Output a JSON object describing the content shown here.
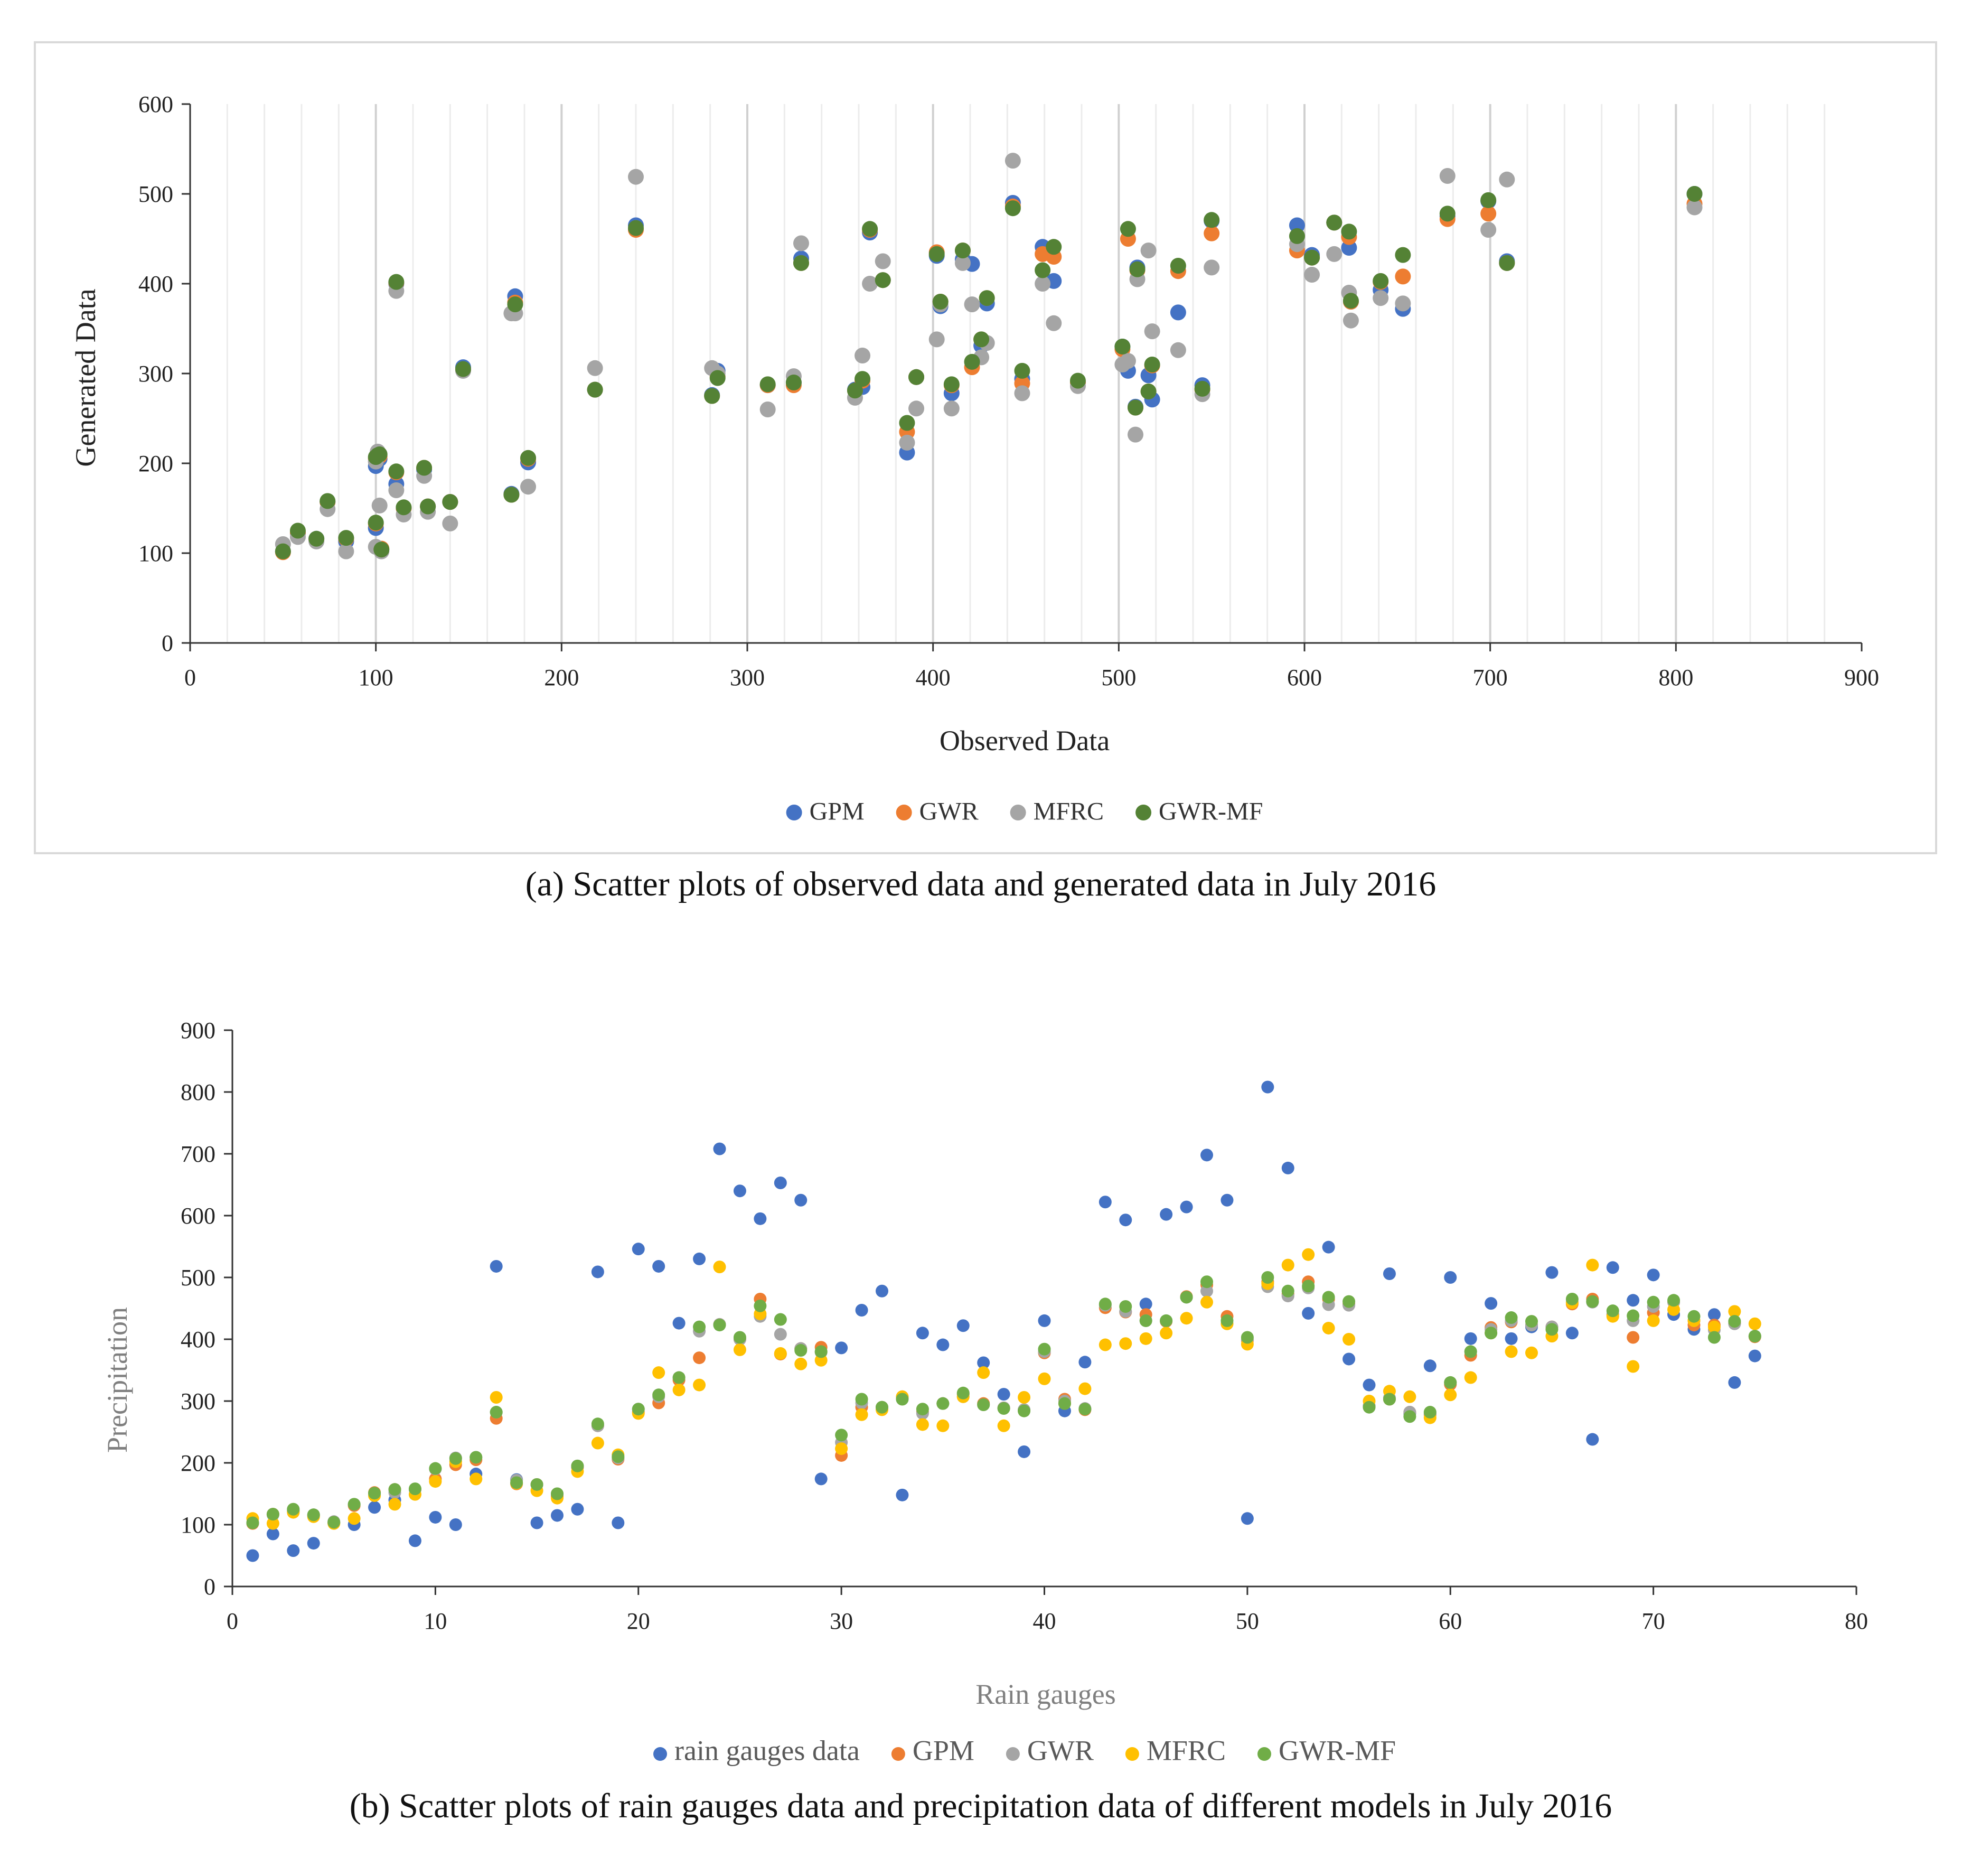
{
  "colors": {
    "blue": "#4472c4",
    "orange": "#ed7d31",
    "grey": "#a5a5a5",
    "yellow": "#ffc000",
    "green": "#548235",
    "green_b": "#70ad47"
  },
  "chart_data": [
    {
      "type": "scatter",
      "title": "",
      "caption": "(a) Scatter plots of observed data and generated data in July 2016",
      "xlabel": "Observed Data",
      "ylabel": "Generated Data",
      "xlim": [
        0,
        900
      ],
      "ylim": [
        0,
        600
      ],
      "xticks": [
        "0",
        "100",
        "200",
        "300",
        "400",
        "500",
        "600",
        "700",
        "800",
        "900"
      ],
      "yticks": [
        "0",
        "100",
        "200",
        "300",
        "400",
        "500",
        "600"
      ],
      "grid": "vertical",
      "legend": "bottom",
      "x": [
        50,
        58,
        68,
        74,
        84,
        100,
        100,
        101,
        102,
        103,
        111,
        111,
        115,
        126,
        128,
        140,
        147,
        173,
        175,
        182,
        218,
        240,
        281,
        284,
        311,
        325,
        329,
        358,
        362,
        366,
        373,
        386,
        391,
        402,
        404,
        410,
        416,
        421,
        426,
        429,
        443,
        448,
        459,
        465,
        478,
        502,
        505,
        509,
        510,
        516,
        518,
        532,
        545,
        550,
        596,
        604,
        616,
        624,
        625,
        641,
        653,
        677,
        699,
        709,
        810
      ],
      "series": [
        {
          "name": "GPM",
          "color": "#4472c4",
          "y": [
            102,
            122,
            116,
            157,
            113,
            128,
            197,
            209,
            205,
            104,
            177,
            400,
            150,
            193,
            152,
            157,
            307,
            166,
            386,
            201,
            282,
            465,
            276,
            303,
            287,
            290,
            428,
            282,
            285,
            457,
            404,
            212,
            296,
            431,
            375,
            278,
            427,
            422,
            331,
            378,
            490,
            294,
            441,
            403,
            290,
            330,
            303,
            263,
            418,
            298,
            271,
            368,
            287,
            470,
            465,
            432,
            468,
            440,
            380,
            393,
            372,
            475,
            492,
            425,
            500
          ]
        },
        {
          "name": "GWR",
          "color": "#ed7d31",
          "y": [
            101,
            123,
            115,
            157,
            116,
            133,
            205,
            208,
            208,
            105,
            190,
            401,
            150,
            195,
            152,
            157,
            304,
            165,
            379,
            205,
            282,
            460,
            275,
            297,
            287,
            287,
            423,
            281,
            292,
            460,
            404,
            235,
            296,
            435,
            380,
            287,
            437,
            307,
            338,
            384,
            486,
            289,
            433,
            430,
            290,
            327,
            450,
            262,
            415,
            280,
            309,
            414,
            282,
            456,
            437,
            429,
            468,
            452,
            380,
            402,
            408,
            472,
            478,
            423,
            489
          ]
        },
        {
          "name": "MFRC",
          "color": "#a5a5a5",
          "y": [
            110,
            118,
            113,
            149,
            102,
            107,
            202,
            213,
            153,
            102,
            170,
            392,
            143,
            186,
            146,
            133,
            303,
            367,
            367,
            174,
            306,
            519,
            306,
            300,
            260,
            297,
            445,
            273,
            320,
            400,
            425,
            223,
            261,
            338,
            377,
            261,
            423,
            377,
            318,
            334,
            537,
            278,
            400,
            356,
            286,
            310,
            314,
            232,
            405,
            437,
            347,
            326,
            277,
            418,
            444,
            410,
            433,
            390,
            359,
            384,
            378,
            520,
            460,
            516,
            485
          ]
        },
        {
          "name": "GWR-MF",
          "color": "#548235",
          "y": [
            102,
            125,
            116,
            158,
            117,
            134,
            207,
            209,
            210,
            104,
            191,
            402,
            151,
            195,
            152,
            157,
            305,
            165,
            377,
            206,
            282,
            462,
            275,
            295,
            288,
            290,
            423,
            281,
            294,
            461,
            404,
            245,
            296,
            433,
            380,
            288,
            437,
            313,
            338,
            384,
            484,
            303,
            415,
            441,
            292,
            330,
            461,
            262,
            416,
            280,
            310,
            420,
            283,
            471,
            453,
            429,
            468,
            458,
            381,
            403,
            432,
            478,
            493,
            423,
            500
          ]
        }
      ]
    },
    {
      "type": "scatter",
      "title": "",
      "caption": "(b) Scatter plots of rain gauges data and precipitation data of different models in July 2016",
      "xlabel": "Rain gauges",
      "ylabel": "Precipitation",
      "xlim": [
        0,
        80
      ],
      "ylim": [
        0,
        900
      ],
      "xticks": [
        "0",
        "10",
        "20",
        "30",
        "40",
        "50",
        "60",
        "70",
        "80"
      ],
      "yticks": [
        "0",
        "100",
        "200",
        "300",
        "400",
        "500",
        "600",
        "700",
        "800",
        "900"
      ],
      "grid": "none",
      "legend": "bottom",
      "x": [
        1,
        2,
        3,
        4,
        5,
        6,
        7,
        8,
        9,
        10,
        11,
        12,
        13,
        14,
        15,
        16,
        17,
        18,
        19,
        20,
        21,
        22,
        23,
        24,
        25,
        26,
        27,
        28,
        29,
        30,
        31,
        32,
        33,
        34,
        35,
        36,
        37,
        38,
        39,
        40,
        41,
        42,
        43,
        44,
        45,
        46,
        47,
        48,
        49,
        50,
        51,
        52,
        53,
        54,
        55,
        56,
        57,
        58,
        59,
        60,
        61,
        62,
        63,
        64,
        65,
        66,
        67,
        68,
        69,
        70,
        71,
        72,
        73,
        74,
        75
      ],
      "series": [
        {
          "name": "rain gauges data",
          "color": "#4472c4",
          "y": [
            50,
            85,
            58,
            70,
            103,
            100,
            128,
            140,
            74,
            112,
            100,
            182,
            518,
            173,
            103,
            115,
            125,
            509,
            103,
            546,
            518,
            426,
            530,
            708,
            640,
            595,
            653,
            625,
            174,
            386,
            447,
            478,
            148,
            410,
            391,
            422,
            362,
            311,
            218,
            430,
            284,
            363,
            622,
            593,
            457,
            602,
            614,
            698,
            625,
            110,
            808,
            677,
            442,
            549,
            368,
            326,
            506,
            280,
            357,
            500,
            401,
            458,
            401,
            420,
            508,
            410,
            238,
            516,
            463,
            504,
            440,
            416,
            440,
            330,
            373
          ]
        },
        {
          "name": "GPM",
          "color": "#ed7d31",
          "y": [
            102,
            117,
            122,
            115,
            103,
            131,
            152,
            157,
            157,
            174,
            197,
            205,
            272,
            166,
            165,
            146,
            193,
            260,
            206,
            282,
            297,
            334,
            370,
            424,
            400,
            465,
            376,
            385,
            387,
            212,
            290,
            290,
            305,
            282,
            296,
            311,
            296,
            289,
            285,
            378,
            303,
            286,
            451,
            444,
            440,
            429,
            469,
            488,
            437,
            398,
            493,
            473,
            493,
            465,
            457,
            292,
            303,
            282,
            278,
            327,
            374,
            419,
            428,
            423,
            420,
            457,
            465,
            440,
            403,
            443,
            460,
            423,
            423,
            426,
            404
          ]
        },
        {
          "name": "GWR",
          "color": "#a5a5a5",
          "y": [
            103,
            116,
            123,
            116,
            105,
            133,
            150,
            152,
            157,
            190,
            208,
            209,
            282,
            172,
            165,
            150,
            195,
            260,
            208,
            287,
            307,
            338,
            413,
            424,
            400,
            437,
            408,
            385,
            379,
            233,
            297,
            290,
            307,
            280,
            296,
            307,
            294,
            289,
            286,
            380,
            300,
            288,
            455,
            445,
            430,
            430,
            468,
            478,
            425,
            400,
            485,
            470,
            483,
            456,
            455,
            292,
            305,
            282,
            280,
            330,
            380,
            416,
            430,
            423,
            420,
            460,
            460,
            440,
            430,
            453,
            460,
            430,
            415,
            425,
            405
          ]
        },
        {
          "name": "MFRC",
          "color": "#ffc000",
          "y": [
            110,
            102,
            120,
            113,
            102,
            110,
            147,
            133,
            149,
            170,
            202,
            174,
            306,
            167,
            155,
            143,
            186,
            232,
            213,
            280,
            346,
            318,
            326,
            517,
            383,
            441,
            377,
            360,
            366,
            223,
            278,
            286,
            307,
            262,
            260,
            307,
            346,
            260,
            306,
            336,
            296,
            320,
            391,
            393,
            401,
            410,
            434,
            460,
            425,
            392,
            490,
            520,
            537,
            418,
            400,
            300,
            316,
            307,
            273,
            310,
            338,
            410,
            380,
            378,
            405,
            459,
            520,
            437,
            356,
            430,
            448,
            430,
            420,
            445,
            425
          ]
        },
        {
          "name": "GWR-MF",
          "color": "#70ad47",
          "y": [
            103,
            117,
            125,
            116,
            104,
            133,
            151,
            157,
            158,
            191,
            207,
            209,
            282,
            168,
            165,
            150,
            195,
            263,
            210,
            287,
            310,
            338,
            420,
            423,
            403,
            454,
            432,
            382,
            380,
            245,
            303,
            290,
            303,
            287,
            296,
            313,
            294,
            288,
            284,
            384,
            296,
            287,
            457,
            453,
            430,
            430,
            468,
            493,
            430,
            403,
            500,
            478,
            486,
            468,
            461,
            290,
            303,
            275,
            282,
            330,
            380,
            410,
            435,
            429,
            416,
            465,
            461,
            446,
            438,
            460,
            463,
            437,
            403,
            429,
            405
          ]
        }
      ]
    }
  ]
}
